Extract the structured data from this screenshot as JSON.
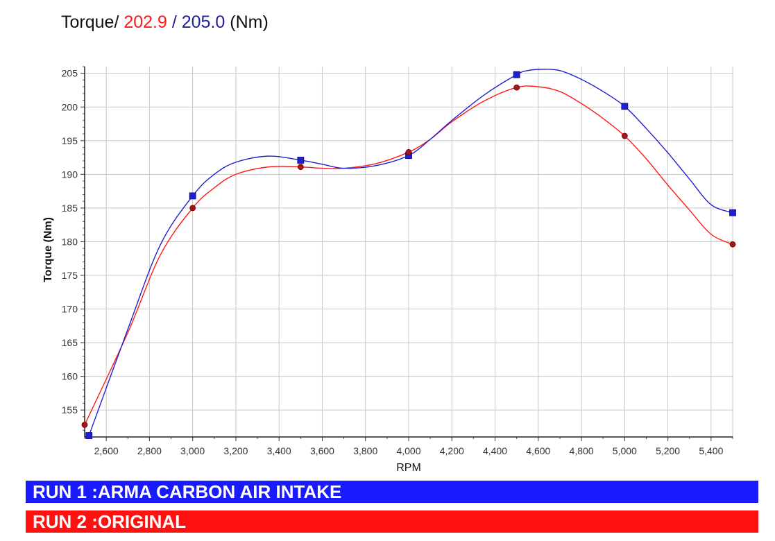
{
  "header": {
    "prefix": "Torque/ ",
    "value1": "202.9",
    "sep": " / ",
    "value2": "205.0",
    "unit": " (Nm)"
  },
  "colors": {
    "run1": "#1f1fd0",
    "run2": "#ff1a1a",
    "run1_bar": "#1a1aff",
    "run2_bar": "#ff1111",
    "grid": "#c8c8c8",
    "run2_marker": "#a01818"
  },
  "legend": {
    "run1": "RUN 1 :ARMA CARBON AIR INTAKE",
    "run2": "RUN 2 :ORIGINAL"
  },
  "chart_data": {
    "type": "line",
    "title": "",
    "xlabel": "RPM",
    "ylabel": "Torque (Nm)",
    "xlim": [
      2500,
      5500
    ],
    "ylim": [
      151,
      206
    ],
    "x_ticks": [
      2600,
      2800,
      3000,
      3200,
      3400,
      3600,
      3800,
      4000,
      4200,
      4400,
      4600,
      4800,
      5000,
      5200,
      5400
    ],
    "x_tick_labels": [
      "2,600",
      "2,800",
      "3,000",
      "3,200",
      "3,400",
      "3,600",
      "3,800",
      "4,000",
      "4,200",
      "4,400",
      "4,600",
      "4,800",
      "5,000",
      "5,200",
      "5,400"
    ],
    "y_ticks": [
      155,
      160,
      165,
      170,
      175,
      180,
      185,
      190,
      195,
      200,
      205
    ],
    "y_tick_labels": [
      "155",
      "160",
      "165",
      "170",
      "175",
      "180",
      "185",
      "190",
      "195",
      "200",
      "205"
    ],
    "grid": true,
    "series": [
      {
        "key": "run1",
        "marker": "square",
        "markers": [
          [
            2520,
            151.2
          ],
          [
            3000,
            186.8
          ],
          [
            3500,
            192.1
          ],
          [
            4000,
            192.8
          ],
          [
            4500,
            204.8
          ],
          [
            5000,
            200.1
          ],
          [
            5500,
            184.3
          ]
        ],
        "curve": [
          [
            2520,
            151.2
          ],
          [
            2700,
            167
          ],
          [
            2850,
            179.5
          ],
          [
            3000,
            186.8
          ],
          [
            3100,
            190
          ],
          [
            3200,
            191.8
          ],
          [
            3350,
            192.7
          ],
          [
            3500,
            192.1
          ],
          [
            3600,
            191.5
          ],
          [
            3700,
            190.9
          ],
          [
            3850,
            191.3
          ],
          [
            4000,
            192.8
          ],
          [
            4100,
            195.2
          ],
          [
            4200,
            198
          ],
          [
            4350,
            201.8
          ],
          [
            4500,
            204.8
          ],
          [
            4550,
            205.4
          ],
          [
            4620,
            205.6
          ],
          [
            4700,
            205.4
          ],
          [
            4800,
            204.1
          ],
          [
            4900,
            202.3
          ],
          [
            5000,
            200.1
          ],
          [
            5100,
            196.8
          ],
          [
            5200,
            193.2
          ],
          [
            5300,
            189.3
          ],
          [
            5400,
            185.5
          ],
          [
            5500,
            184.3
          ]
        ]
      },
      {
        "key": "run2",
        "marker": "circle",
        "markers": [
          [
            2500,
            152.8
          ],
          [
            3000,
            185
          ],
          [
            3500,
            191.1
          ],
          [
            4000,
            193.3
          ],
          [
            4500,
            202.9
          ],
          [
            5000,
            195.7
          ],
          [
            5500,
            179.6
          ]
        ],
        "curve": [
          [
            2500,
            152.8
          ],
          [
            2700,
            166.5
          ],
          [
            2850,
            178
          ],
          [
            3000,
            185
          ],
          [
            3100,
            188
          ],
          [
            3200,
            190
          ],
          [
            3350,
            191.1
          ],
          [
            3500,
            191.1
          ],
          [
            3600,
            190.9
          ],
          [
            3700,
            190.9
          ],
          [
            3850,
            191.6
          ],
          [
            4000,
            193.3
          ],
          [
            4100,
            195.2
          ],
          [
            4200,
            197.8
          ],
          [
            4350,
            200.9
          ],
          [
            4500,
            202.9
          ],
          [
            4600,
            203
          ],
          [
            4700,
            202.3
          ],
          [
            4800,
            200.5
          ],
          [
            4900,
            198.3
          ],
          [
            5000,
            195.7
          ],
          [
            5100,
            192.3
          ],
          [
            5200,
            188.4
          ],
          [
            5300,
            184.7
          ],
          [
            5400,
            181.1
          ],
          [
            5500,
            179.6
          ]
        ]
      }
    ]
  }
}
